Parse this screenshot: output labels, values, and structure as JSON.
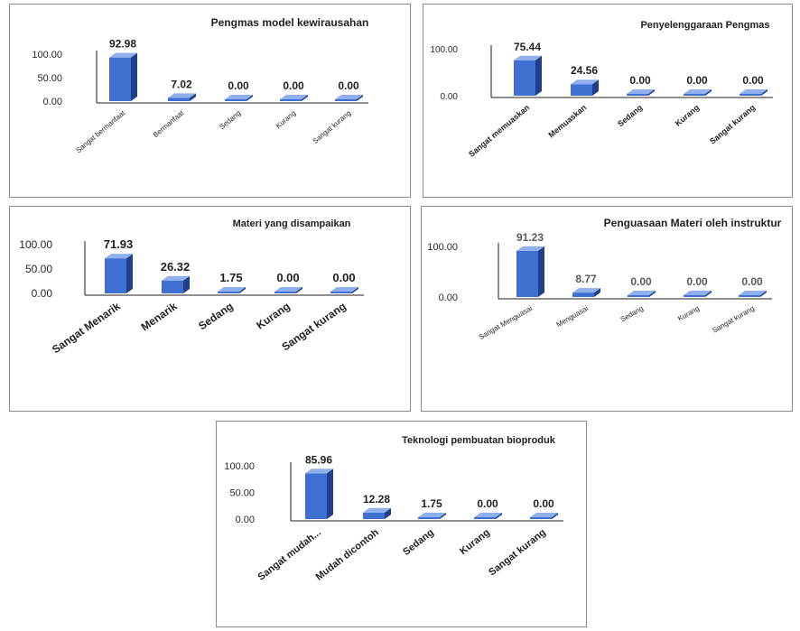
{
  "colors": {
    "bar": "#3f6fd1",
    "bar_side": "#1f3f8a",
    "bar_top": "#8fb0ec",
    "axis": "#1f1f1f"
  },
  "chart_data": [
    {
      "type": "bar",
      "title": "Pengmas model kewirausahan",
      "categories": [
        "Sangat bermanfaat",
        "Bermanfaat",
        "Sedang",
        "Kurang",
        "Sangat kurang"
      ],
      "values": [
        92.98,
        7.02,
        0.0,
        0.0,
        0.0
      ],
      "value_labels": [
        "92.98",
        "7.02",
        "0.00",
        "0.00",
        "0.00"
      ],
      "yticks": [
        "0.00",
        "50.00",
        "100.00"
      ],
      "ylim": [
        0,
        100
      ],
      "xlabel": "",
      "ylabel": ""
    },
    {
      "type": "bar",
      "title": "Penyelenggaraan Pengmas",
      "categories": [
        "Sangat memuaskan",
        "Memuaskan",
        "Sedang",
        "Kurang",
        "Sangat kurang"
      ],
      "values": [
        75.44,
        24.56,
        0.0,
        0.0,
        0.0
      ],
      "value_labels": [
        "75.44",
        "24.56",
        "0.00",
        "0.00",
        "0.00"
      ],
      "yticks": [
        "0.00",
        "100.00"
      ],
      "ylim": [
        0,
        100
      ],
      "xlabel": "",
      "ylabel": ""
    },
    {
      "type": "bar",
      "title": "Materi yang disampaikan",
      "categories": [
        "Sangat Menarik",
        "Menarik",
        "Sedang",
        "Kurang",
        "Sangat kurang"
      ],
      "values": [
        71.93,
        26.32,
        1.75,
        0.0,
        0.0
      ],
      "value_labels": [
        "71.93",
        "26.32",
        "1.75",
        "0.00",
        "0.00"
      ],
      "yticks": [
        "0.00",
        "50.00",
        "100.00"
      ],
      "ylim": [
        0,
        100
      ],
      "xlabel": "",
      "ylabel": ""
    },
    {
      "type": "bar",
      "title": "Penguasaan Materi oleh instruktur",
      "categories": [
        "Sangat Menguasai",
        "Menguasai",
        "Sedang",
        "Kurang",
        "Sangat kurang"
      ],
      "values": [
        91.23,
        8.77,
        0.0,
        0.0,
        0.0
      ],
      "value_labels": [
        "91.23",
        "8.77",
        "0.00",
        "0.00",
        "0.00"
      ],
      "yticks": [
        "0.00",
        "100.00"
      ],
      "ylim": [
        0,
        100
      ],
      "xlabel": "",
      "ylabel": ""
    },
    {
      "type": "bar",
      "title": "Teknologi pembuatan bioproduk",
      "categories": [
        "Sangat mudah...",
        "Mudah dicontoh",
        "Sedang",
        "Kurang",
        "Sangat kurang"
      ],
      "values": [
        85.96,
        12.28,
        1.75,
        0.0,
        0.0
      ],
      "value_labels": [
        "85.96",
        "12.28",
        "1.75",
        "0.00",
        "0.00"
      ],
      "yticks": [
        "0.00",
        "50.00",
        "100.00"
      ],
      "ylim": [
        0,
        100
      ],
      "xlabel": "",
      "ylabel": ""
    }
  ]
}
